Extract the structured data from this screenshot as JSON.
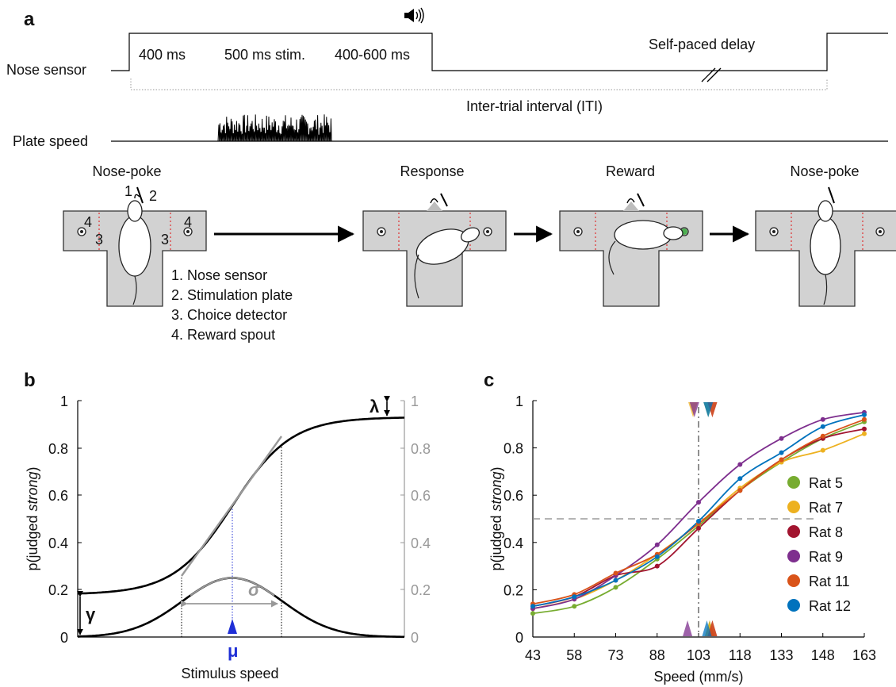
{
  "panel_a": {
    "letter": "a",
    "nose_sensor_label": "Nose sensor",
    "plate_speed_label": "Plate speed",
    "phase1": "400 ms",
    "phase2": "500 ms stim.",
    "phase3": "400-600 ms",
    "delay": "Self-paced delay",
    "iti": "Inter-trial interval (ITI)",
    "steps": [
      "Nose-poke",
      "Response",
      "Reward",
      "Nose-poke"
    ],
    "legend": [
      "1. Nose sensor",
      "2. Stimulation plate",
      "3. Choice detector",
      "4. Reward spout"
    ],
    "numbers": [
      "1",
      "2",
      "3",
      "3",
      "4",
      "4"
    ],
    "speaker_icon": "speaker-icon"
  },
  "panel_b": {
    "letter": "b",
    "ylabel_prefix": "p(judged ",
    "ylabel_italic": "strong",
    "ylabel_suffix": ")",
    "xlabel": "Stimulus speed",
    "yticks": [
      "1",
      "0.8",
      "0.6",
      "0.4",
      "0.2",
      "0"
    ],
    "symbols": {
      "lambda": "λ",
      "gamma": "γ",
      "sigma": "σ",
      "mu": "μ"
    }
  },
  "panel_c": {
    "letter": "c",
    "ylabel_prefix": "p(judged ",
    "ylabel_italic": "strong",
    "ylabel_suffix": ")",
    "xlabel": "Speed (mm/s)"
  },
  "chart_data": {
    "type": "scatter",
    "x": [
      43,
      58,
      73,
      88,
      103,
      118,
      133,
      148,
      163
    ],
    "xlim": [
      43,
      163
    ],
    "ylim": [
      0,
      1
    ],
    "xticks": [
      "43",
      "58",
      "73",
      "88",
      "103",
      "118",
      "133",
      "148",
      "163"
    ],
    "yticks": [
      "0",
      "0.2",
      "0.4",
      "0.6",
      "0.8",
      "1"
    ],
    "xlabel": "Speed (mm/s)",
    "ylabel": "p(judged strong)",
    "legend_position": "right",
    "reference_x": 103,
    "reference_y": 0.5,
    "series": [
      {
        "name": "Rat 5",
        "color": "#77ac30",
        "values": [
          0.1,
          0.13,
          0.21,
          0.33,
          0.47,
          0.62,
          0.74,
          0.84,
          0.91
        ],
        "pse": 107,
        "threshold": 106.5
      },
      {
        "name": "Rat 7",
        "color": "#edb120",
        "values": [
          0.12,
          0.16,
          0.24,
          0.35,
          0.48,
          0.63,
          0.74,
          0.79,
          0.86
        ],
        "pse": 107,
        "threshold": 101
      },
      {
        "name": "Rat 8",
        "color": "#a2142f",
        "values": [
          0.13,
          0.17,
          0.26,
          0.3,
          0.46,
          0.62,
          0.75,
          0.84,
          0.88
        ],
        "pse": 108,
        "threshold": 108
      },
      {
        "name": "Rat 9",
        "color": "#7e2f8e",
        "values": [
          0.12,
          0.16,
          0.26,
          0.39,
          0.57,
          0.73,
          0.84,
          0.92,
          0.95
        ],
        "pse": 99,
        "threshold": 101.5
      },
      {
        "name": "Rat 11",
        "color": "#d95319",
        "values": [
          0.14,
          0.18,
          0.27,
          0.35,
          0.48,
          0.62,
          0.75,
          0.85,
          0.92
        ],
        "pse": 108,
        "threshold": 108
      },
      {
        "name": "Rat 12",
        "color": "#0072bd",
        "values": [
          0.13,
          0.17,
          0.24,
          0.34,
          0.49,
          0.67,
          0.78,
          0.89,
          0.94
        ],
        "pse": 106,
        "threshold": 106.5
      }
    ]
  }
}
